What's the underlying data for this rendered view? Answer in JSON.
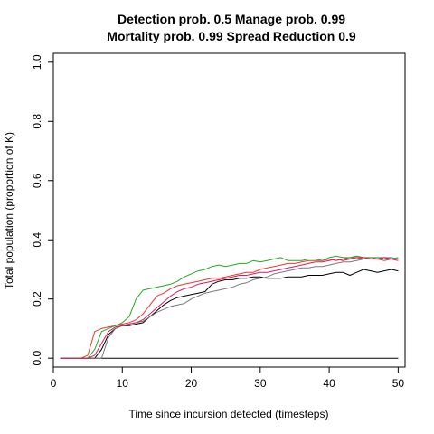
{
  "chart_data": {
    "type": "line",
    "title_lines": [
      "Detection prob. 0.5 Manage prob. 0.99",
      "Mortality prob. 0.99 Spread Reduction 0.9"
    ],
    "xlabel": "Time since incursion detected (timesteps)",
    "ylabel": "Total population (proportion of K)",
    "xlim": [
      0,
      51
    ],
    "ylim": [
      -0.03,
      1.03
    ],
    "xticks": [
      0,
      10,
      20,
      30,
      40,
      50
    ],
    "yticks": [
      0.0,
      0.2,
      0.4,
      0.6,
      0.8,
      1.0
    ],
    "ytick_labels": [
      "0.0",
      "0.2",
      "0.4",
      "0.6",
      "0.8",
      "1.0"
    ],
    "grid": false,
    "legend": "none",
    "series": [
      {
        "color": "#000000",
        "x": [
          1,
          5,
          6,
          7,
          8,
          9,
          10,
          11,
          12,
          13,
          14,
          15,
          16,
          17,
          18,
          19,
          20,
          21,
          22,
          23,
          24,
          25,
          26,
          27,
          28,
          29,
          30,
          31,
          32,
          33,
          34,
          35,
          36,
          37,
          38,
          39,
          40,
          41,
          42,
          43,
          44,
          45,
          46,
          47,
          48,
          49,
          50
        ],
        "y": [
          0,
          0,
          0,
          0.03,
          0.08,
          0.1,
          0.11,
          0.11,
          0.115,
          0.12,
          0.14,
          0.16,
          0.18,
          0.195,
          0.205,
          0.21,
          0.215,
          0.22,
          0.225,
          0.25,
          0.26,
          0.265,
          0.265,
          0.27,
          0.27,
          0.275,
          0.275,
          0.27,
          0.27,
          0.27,
          0.275,
          0.275,
          0.275,
          0.28,
          0.28,
          0.28,
          0.285,
          0.29,
          0.29,
          0.28,
          0.29,
          0.3,
          0.295,
          0.29,
          0.295,
          0.3,
          0.295
        ]
      },
      {
        "color": "#000000",
        "x": [
          1,
          50
        ],
        "y": [
          0,
          0
        ]
      },
      {
        "color": "#e8392f",
        "x": [
          1,
          4,
          5,
          6,
          7,
          8,
          9,
          10,
          11,
          12,
          13,
          14,
          15,
          16,
          17,
          18,
          19,
          20,
          21,
          22,
          23,
          24,
          25,
          26,
          27,
          28,
          29,
          30,
          31,
          32,
          33,
          34,
          35,
          36,
          37,
          38,
          39,
          40,
          41,
          42,
          43,
          44,
          45,
          46,
          47,
          48,
          49,
          50
        ],
        "y": [
          0,
          0,
          0.01,
          0.09,
          0.1,
          0.105,
          0.11,
          0.115,
          0.12,
          0.13,
          0.15,
          0.18,
          0.21,
          0.22,
          0.235,
          0.245,
          0.25,
          0.255,
          0.26,
          0.265,
          0.27,
          0.27,
          0.275,
          0.28,
          0.285,
          0.29,
          0.29,
          0.3,
          0.305,
          0.31,
          0.315,
          0.32,
          0.32,
          0.325,
          0.33,
          0.33,
          0.33,
          0.335,
          0.33,
          0.335,
          0.34,
          0.34,
          0.335,
          0.34,
          0.335,
          0.33,
          0.335,
          0.335
        ]
      },
      {
        "color": "#22aa22",
        "x": [
          1,
          5,
          6,
          7,
          8,
          9,
          10,
          11,
          12,
          13,
          14,
          15,
          16,
          17,
          18,
          19,
          20,
          21,
          22,
          23,
          24,
          25,
          26,
          27,
          28,
          29,
          30,
          31,
          32,
          33,
          34,
          35,
          36,
          37,
          38,
          39,
          40,
          41,
          42,
          43,
          44,
          45,
          46,
          47,
          48,
          49,
          50
        ],
        "y": [
          0,
          0,
          0.03,
          0.09,
          0.1,
          0.11,
          0.12,
          0.14,
          0.2,
          0.23,
          0.235,
          0.24,
          0.245,
          0.25,
          0.26,
          0.275,
          0.285,
          0.295,
          0.3,
          0.31,
          0.315,
          0.31,
          0.315,
          0.32,
          0.32,
          0.33,
          0.325,
          0.33,
          0.335,
          0.34,
          0.33,
          0.33,
          0.33,
          0.335,
          0.335,
          0.33,
          0.34,
          0.345,
          0.34,
          0.34,
          0.345,
          0.34,
          0.34,
          0.34,
          0.34,
          0.335,
          0.34
        ]
      },
      {
        "color": "#7a7a7a",
        "x": [
          1,
          5,
          6,
          7,
          8,
          9,
          10,
          11,
          12,
          13,
          14,
          15,
          16,
          17,
          18,
          19,
          20,
          21,
          22,
          23,
          24,
          25,
          26,
          27,
          28,
          29,
          30,
          31,
          32,
          33,
          34,
          35,
          36,
          37,
          38,
          39,
          40,
          41,
          42,
          43,
          44,
          45,
          46,
          47,
          48,
          49,
          50
        ],
        "y": [
          0,
          0,
          0,
          0,
          0.07,
          0.1,
          0.11,
          0.115,
          0.12,
          0.125,
          0.14,
          0.155,
          0.165,
          0.175,
          0.18,
          0.185,
          0.2,
          0.21,
          0.22,
          0.225,
          0.23,
          0.235,
          0.24,
          0.25,
          0.255,
          0.265,
          0.27,
          0.275,
          0.285,
          0.29,
          0.295,
          0.3,
          0.305,
          0.305,
          0.31,
          0.31,
          0.315,
          0.32,
          0.325,
          0.325,
          0.33,
          0.335,
          0.335,
          0.335,
          0.34,
          0.34,
          0.335
        ]
      },
      {
        "color": "#d81b60",
        "x": [
          1,
          5,
          6,
          7,
          8,
          9,
          10,
          11,
          12,
          13,
          14,
          15,
          16,
          17,
          18,
          19,
          20,
          21,
          22,
          23,
          24,
          25,
          26,
          27,
          28,
          29,
          30,
          31,
          32,
          33,
          34,
          35,
          36,
          37,
          38,
          39,
          40,
          41,
          42,
          43,
          44,
          45,
          46,
          47,
          48,
          49,
          50
        ],
        "y": [
          0,
          0,
          0.01,
          0.05,
          0.09,
          0.105,
          0.11,
          0.115,
          0.12,
          0.13,
          0.15,
          0.17,
          0.19,
          0.21,
          0.225,
          0.235,
          0.24,
          0.25,
          0.255,
          0.26,
          0.265,
          0.27,
          0.275,
          0.28,
          0.28,
          0.285,
          0.29,
          0.29,
          0.295,
          0.3,
          0.305,
          0.31,
          0.315,
          0.32,
          0.325,
          0.325,
          0.33,
          0.335,
          0.33,
          0.335,
          0.34,
          0.34,
          0.335,
          0.335,
          0.34,
          0.335,
          0.33
        ]
      }
    ]
  }
}
